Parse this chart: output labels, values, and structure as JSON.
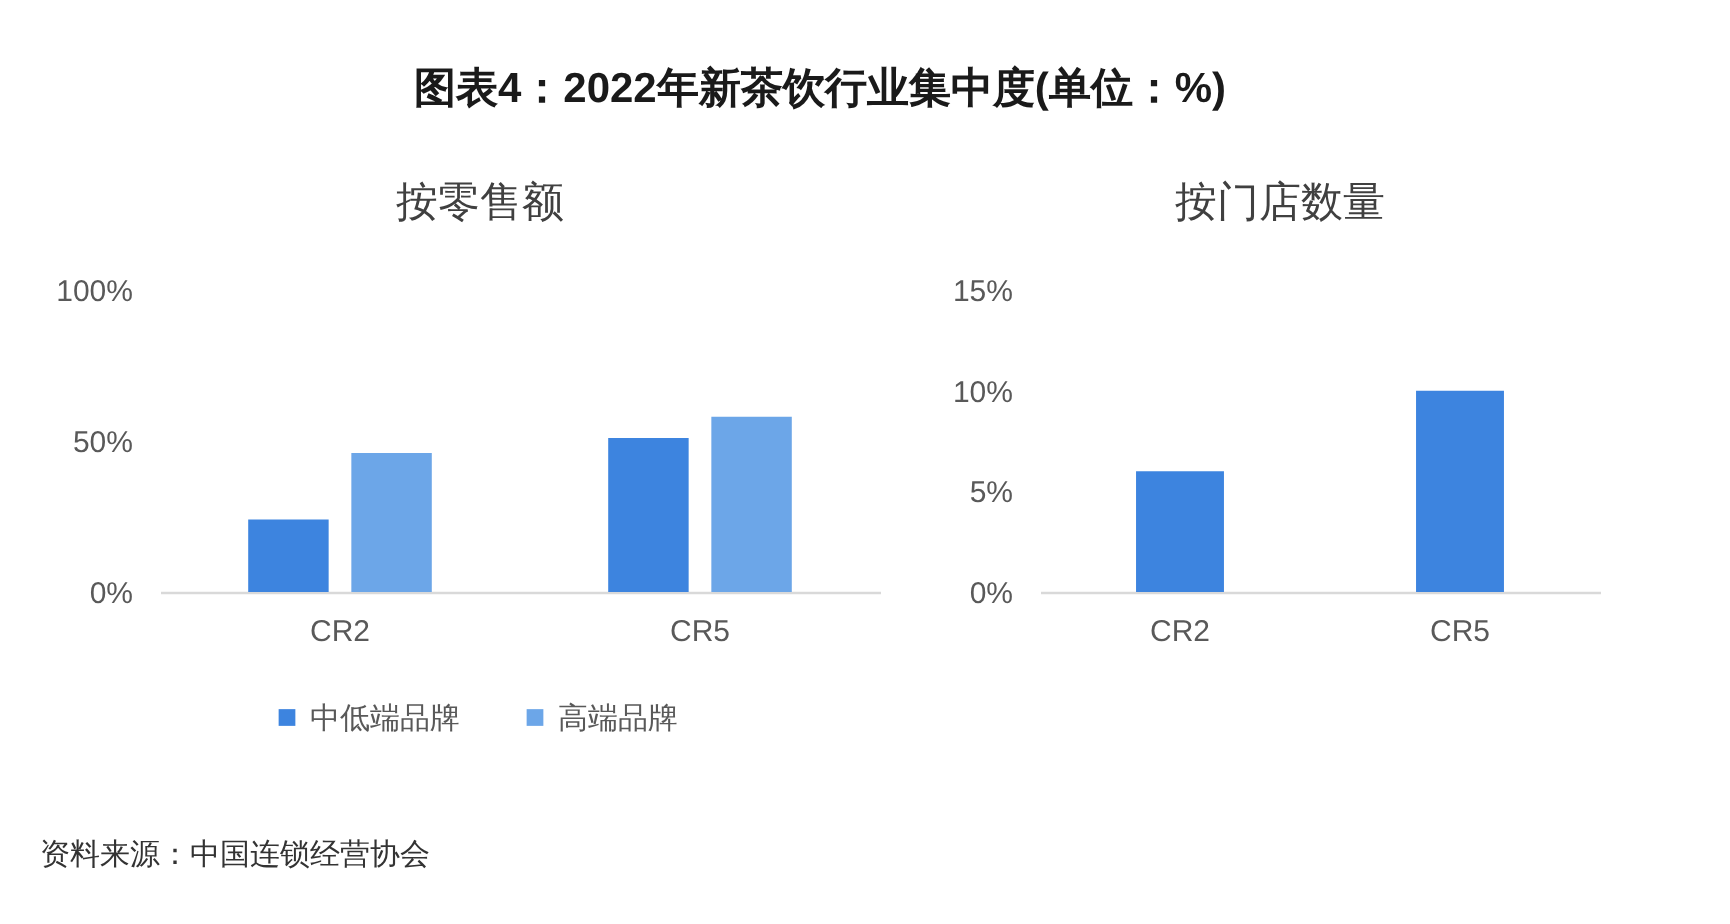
{
  "chart_data": [
    {
      "type": "bar",
      "title": "图表4：2022年新茶饮行业集中度(单位：%)",
      "subtitle": "按零售额",
      "categories": [
        "CR2",
        "CR5"
      ],
      "series": [
        {
          "name": "中低端品牌",
          "color": "#3d84df",
          "values": [
            24,
            51
          ]
        },
        {
          "name": "高端品牌",
          "color": "#6ca6e8",
          "values": [
            46,
            58
          ]
        }
      ],
      "ylim": [
        0,
        100
      ],
      "yticks": [
        {
          "value": 0,
          "label": "0%"
        },
        {
          "value": 50,
          "label": "50%"
        },
        {
          "value": 100,
          "label": "100%"
        }
      ],
      "legend": "bottom",
      "annotations": [
        "资料来源：中国连锁经营协会"
      ]
    },
    {
      "type": "bar",
      "subtitle": "按门店数量",
      "categories": [
        "CR2",
        "CR5"
      ],
      "series": [
        {
          "color": "#3d84df",
          "values": [
            6,
            10
          ]
        }
      ],
      "ylim": [
        0,
        15
      ],
      "yticks": [
        {
          "value": 0,
          "label": "0%"
        },
        {
          "value": 5,
          "label": "5%"
        },
        {
          "value": 10,
          "label": "10%"
        },
        {
          "value": 15,
          "label": "15%"
        }
      ]
    }
  ]
}
